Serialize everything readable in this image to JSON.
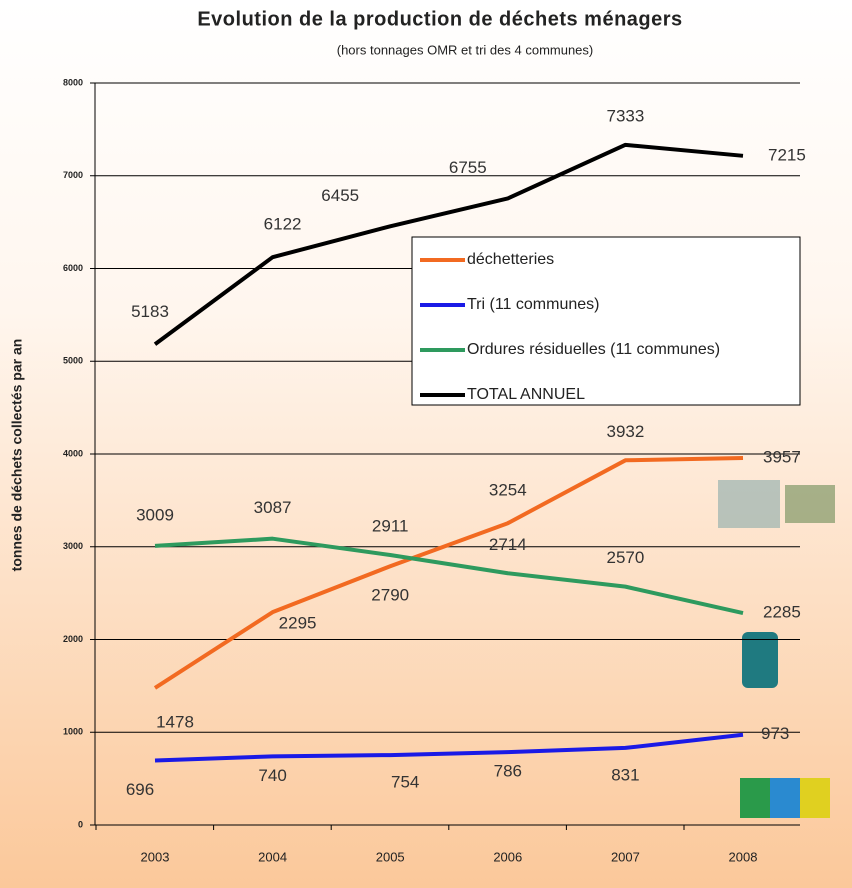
{
  "chart_data": {
    "type": "line",
    "title": "Evolution de la production de déchets ménagers",
    "subtitle": "(hors tonnages OMR et tri des 4 communes)",
    "y_label": "tonnes de déchets collectés par an",
    "x": [
      2003,
      2004,
      2005,
      2006,
      2007,
      2008
    ],
    "series": [
      {
        "name": "déchetteries",
        "color": "#f26a21",
        "values": [
          1478,
          2295,
          2790,
          3254,
          3932,
          3957
        ]
      },
      {
        "name": "Tri (11 communes)",
        "color": "#1a1ae6",
        "values": [
          696,
          740,
          754,
          786,
          831,
          973
        ]
      },
      {
        "name": "Ordures résiduelles (11 communes)",
        "color": "#2e9a5e",
        "values": [
          3009,
          3087,
          2911,
          2714,
          2570,
          2285
        ]
      },
      {
        "name": "TOTAL ANNUEL",
        "color": "#000000",
        "values": [
          5183,
          6122,
          6455,
          6755,
          7333,
          7215
        ]
      }
    ],
    "xlim": [
      2002,
      2009
    ],
    "xticks": [
      2003,
      2004,
      2005,
      2006,
      2007,
      2008
    ],
    "ylim": [
      0,
      8000
    ],
    "yticks": [
      0,
      1000,
      2000,
      3000,
      4000,
      5000,
      6000,
      7000,
      8000
    ],
    "grid": true,
    "legend": "upper right"
  }
}
